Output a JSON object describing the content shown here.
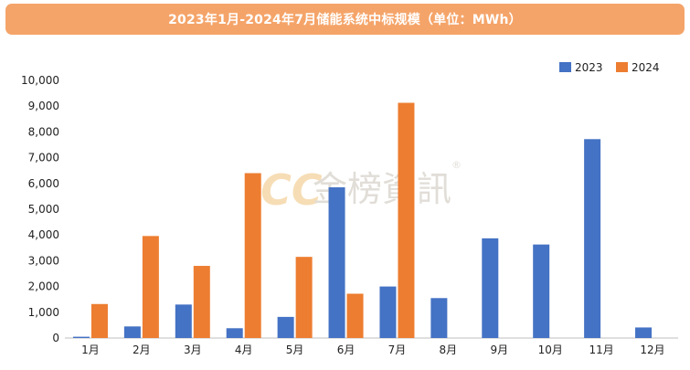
{
  "chart_data": {
    "type": "bar",
    "title": "2023年1月-2024年7月储能系统中标规模（单位：MWh）",
    "categories": [
      "1月",
      "2月",
      "3月",
      "4月",
      "5月",
      "6月",
      "7月",
      "8月",
      "9月",
      "10月",
      "11月",
      "12月"
    ],
    "series": [
      {
        "name": "2023",
        "color": "#4472c4",
        "values": [
          50,
          450,
          1300,
          380,
          820,
          5850,
          2000,
          1550,
          3870,
          3630,
          7720,
          410
        ]
      },
      {
        "name": "2024",
        "color": "#ed7d31",
        "values": [
          1320,
          3960,
          2800,
          6400,
          3150,
          1720,
          9130,
          null,
          null,
          null,
          null,
          null
        ]
      }
    ],
    "ylim": [
      0,
      10000
    ],
    "yticks": [
      "0",
      "1,000",
      "2,000",
      "3,000",
      "4,000",
      "5,000",
      "6,000",
      "7,000",
      "8,000",
      "9,000",
      "10,000"
    ],
    "legend_position": "top-right",
    "grid": false
  },
  "watermark": {
    "text": "ICC 金榜資訊®",
    "color": "#e8c89a"
  }
}
